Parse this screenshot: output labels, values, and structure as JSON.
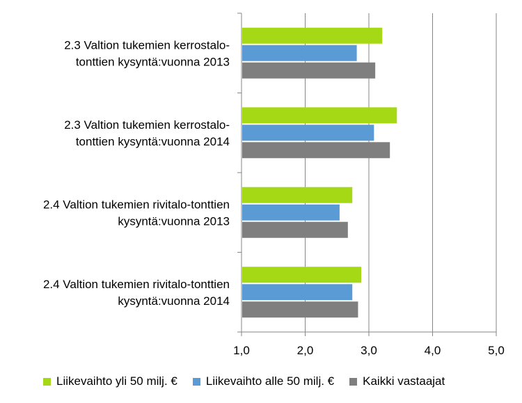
{
  "chart_data": {
    "type": "bar",
    "orientation": "horizontal",
    "categories": [
      [
        "2.3 Valtion tukemien kerrostalo-",
        "tonttien kysyntä:vuonna 2013"
      ],
      [
        "2.3 Valtion tukemien kerrostalo-",
        "tonttien kysyntä:vuonna 2014"
      ],
      [
        "2.4 Valtion tukemien rivitalo-tonttien",
        "kysyntä:vuonna 2013"
      ],
      [
        "2.4 Valtion tukemien rivitalo-tonttien",
        "kysyntä:vuonna 2014"
      ]
    ],
    "series": [
      {
        "name": "Liikevaihto yli 50 milj. €",
        "color": "#a6d915",
        "values": [
          3.21,
          3.44,
          2.74,
          2.88
        ]
      },
      {
        "name": "Liikevaihto alle 50 milj. €",
        "color": "#5b9bd5",
        "values": [
          2.81,
          3.08,
          2.54,
          2.74
        ]
      },
      {
        "name": "Kaikki vastaajat",
        "color": "#7f7f7f",
        "values": [
          3.1,
          3.33,
          2.67,
          2.83
        ]
      }
    ],
    "xlim": [
      1.0,
      5.0
    ],
    "xticks": [
      "1,0",
      "2,0",
      "3,0",
      "4,0",
      "5,0"
    ],
    "grid": true,
    "legend_position": "bottom"
  }
}
